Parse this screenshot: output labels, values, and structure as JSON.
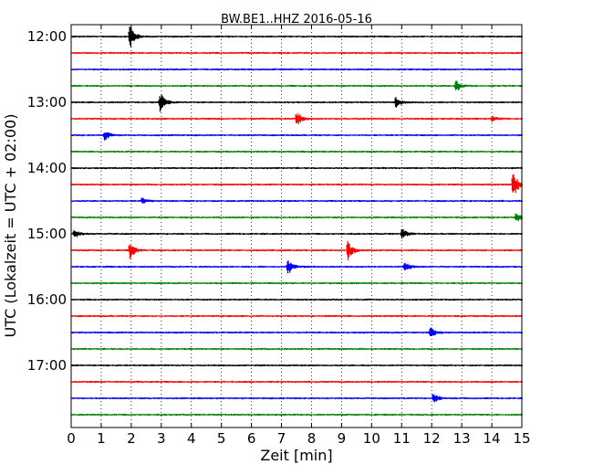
{
  "chart_data": {
    "type": "line",
    "title": "BW.BE1..HHZ 2016-05-16",
    "xlabel": "Zeit  [min]",
    "ylabel": "UTC (Lokalzeit = UTC + 02:00)",
    "xlim": [
      0,
      15
    ],
    "x_ticks": [
      0,
      1,
      2,
      3,
      4,
      5,
      6,
      7,
      8,
      9,
      10,
      11,
      12,
      13,
      14,
      15
    ],
    "y_tick_labels": [
      "12:00",
      "13:00",
      "14:00",
      "15:00",
      "16:00",
      "17:00"
    ],
    "row_duration_min": 15,
    "grid": "vertical dotted",
    "line_colors": [
      "#000000",
      "#ff0000",
      "#0000ff",
      "#008000"
    ],
    "rows": [
      {
        "start": "12:00",
        "color": "#000000",
        "events": [
          {
            "t": 1.95,
            "amp": 1.0
          }
        ]
      },
      {
        "start": "12:15",
        "color": "#ff0000",
        "events": []
      },
      {
        "start": "12:30",
        "color": "#0000ff",
        "events": []
      },
      {
        "start": "12:45",
        "color": "#008000",
        "events": [
          {
            "t": 12.8,
            "amp": 0.5
          }
        ]
      },
      {
        "start": "13:00",
        "color": "#000000",
        "events": [
          {
            "t": 2.95,
            "amp": 0.9
          },
          {
            "t": 10.8,
            "amp": 0.45
          }
        ]
      },
      {
        "start": "13:15",
        "color": "#ff0000",
        "events": [
          {
            "t": 7.5,
            "amp": 0.6
          },
          {
            "t": 14.0,
            "amp": 0.2
          }
        ]
      },
      {
        "start": "13:30",
        "color": "#0000ff",
        "events": [
          {
            "t": 1.1,
            "amp": 0.4
          }
        ]
      },
      {
        "start": "13:45",
        "color": "#008000",
        "events": []
      },
      {
        "start": "14:00",
        "color": "#000000",
        "events": []
      },
      {
        "start": "14:15",
        "color": "#ff0000",
        "events": [
          {
            "t": 14.7,
            "amp": 1.2
          }
        ]
      },
      {
        "start": "14:30",
        "color": "#0000ff",
        "events": [
          {
            "t": 2.35,
            "amp": 0.25
          }
        ]
      },
      {
        "start": "14:45",
        "color": "#008000",
        "events": [
          {
            "t": 14.8,
            "amp": 0.4
          }
        ]
      },
      {
        "start": "15:00",
        "color": "#000000",
        "events": [
          {
            "t": 0.1,
            "amp": 0.35
          },
          {
            "t": 11.0,
            "amp": 0.45
          }
        ]
      },
      {
        "start": "15:15",
        "color": "#ff0000",
        "events": [
          {
            "t": 1.95,
            "amp": 0.7
          },
          {
            "t": 9.2,
            "amp": 0.75
          }
        ]
      },
      {
        "start": "15:30",
        "color": "#0000ff",
        "events": [
          {
            "t": 7.2,
            "amp": 0.65
          },
          {
            "t": 11.1,
            "amp": 0.4
          }
        ]
      },
      {
        "start": "15:45",
        "color": "#008000",
        "events": []
      },
      {
        "start": "16:00",
        "color": "#000000",
        "events": []
      },
      {
        "start": "16:15",
        "color": "#ff0000",
        "events": []
      },
      {
        "start": "16:30",
        "color": "#0000ff",
        "events": [
          {
            "t": 11.95,
            "amp": 0.45
          }
        ]
      },
      {
        "start": "16:45",
        "color": "#008000",
        "events": []
      },
      {
        "start": "17:00",
        "color": "#000000",
        "events": []
      },
      {
        "start": "17:15",
        "color": "#ff0000",
        "events": []
      },
      {
        "start": "17:30",
        "color": "#0000ff",
        "events": [
          {
            "t": 12.05,
            "amp": 0.4
          }
        ]
      },
      {
        "start": "17:45",
        "color": "#008000",
        "events": []
      }
    ]
  }
}
